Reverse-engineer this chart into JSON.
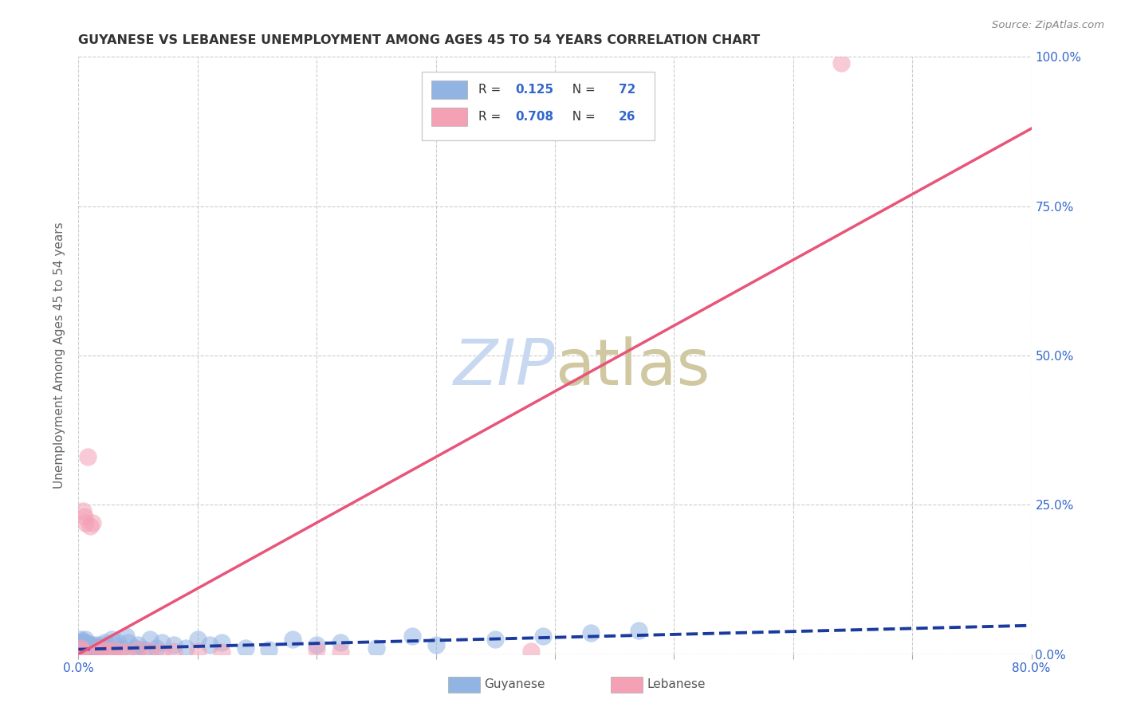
{
  "title": "GUYANESE VS LEBANESE UNEMPLOYMENT AMONG AGES 45 TO 54 YEARS CORRELATION CHART",
  "source": "Source: ZipAtlas.com",
  "ylabel": "Unemployment Among Ages 45 to 54 years",
  "xlim": [
    0.0,
    0.8
  ],
  "ylim": [
    0.0,
    1.0
  ],
  "yticks_right": [
    0.0,
    0.25,
    0.5,
    0.75,
    1.0
  ],
  "ytick_labels_right": [
    "0.0%",
    "25.0%",
    "50.0%",
    "75.0%",
    "100.0%"
  ],
  "xtick_positions": [
    0.0,
    0.1,
    0.2,
    0.3,
    0.4,
    0.5,
    0.6,
    0.7,
    0.8
  ],
  "xtick_labels": [
    "0.0%",
    "",
    "",
    "",
    "",
    "",
    "",
    "",
    "80.0%"
  ],
  "guyanese_color": "#92b4e3",
  "lebanese_color": "#f4a0b5",
  "guyanese_line_color": "#1a3a9e",
  "lebanese_line_color": "#e8547a",
  "title_color": "#333333",
  "source_color": "#888888",
  "label_color": "#3366cc",
  "watermark_color": "#c8d8f0",
  "grid_color": "#cccccc",
  "R_guyanese": 0.125,
  "N_guyanese": 72,
  "R_lebanese": 0.708,
  "N_lebanese": 26,
  "guyanese_scatter_x": [
    0.0,
    0.001,
    0.001,
    0.002,
    0.002,
    0.002,
    0.003,
    0.003,
    0.003,
    0.004,
    0.004,
    0.004,
    0.005,
    0.005,
    0.005,
    0.006,
    0.006,
    0.006,
    0.007,
    0.007,
    0.007,
    0.008,
    0.008,
    0.009,
    0.009,
    0.01,
    0.01,
    0.011,
    0.011,
    0.012,
    0.012,
    0.013,
    0.013,
    0.014,
    0.015,
    0.015,
    0.016,
    0.017,
    0.018,
    0.019,
    0.02,
    0.022,
    0.025,
    0.028,
    0.03,
    0.033,
    0.036,
    0.04,
    0.042,
    0.048,
    0.05,
    0.055,
    0.06,
    0.065,
    0.07,
    0.08,
    0.09,
    0.1,
    0.11,
    0.12,
    0.14,
    0.16,
    0.18,
    0.2,
    0.22,
    0.25,
    0.28,
    0.3,
    0.35,
    0.39,
    0.43,
    0.47
  ],
  "guyanese_scatter_y": [
    0.005,
    0.012,
    0.02,
    0.008,
    0.015,
    0.025,
    0.005,
    0.01,
    0.018,
    0.008,
    0.015,
    0.022,
    0.005,
    0.012,
    0.02,
    0.008,
    0.015,
    0.025,
    0.005,
    0.01,
    0.018,
    0.008,
    0.015,
    0.005,
    0.012,
    0.008,
    0.015,
    0.005,
    0.012,
    0.008,
    0.015,
    0.005,
    0.012,
    0.008,
    0.005,
    0.015,
    0.008,
    0.012,
    0.005,
    0.01,
    0.015,
    0.02,
    0.01,
    0.025,
    0.015,
    0.02,
    0.01,
    0.03,
    0.02,
    0.01,
    0.015,
    0.008,
    0.025,
    0.01,
    0.02,
    0.015,
    0.01,
    0.025,
    0.015,
    0.02,
    0.01,
    0.008,
    0.025,
    0.015,
    0.02,
    0.01,
    0.03,
    0.015,
    0.025,
    0.03,
    0.035,
    0.04
  ],
  "lebanese_scatter_x": [
    0.001,
    0.002,
    0.003,
    0.004,
    0.005,
    0.006,
    0.008,
    0.01,
    0.012,
    0.015,
    0.018,
    0.02,
    0.025,
    0.03,
    0.035,
    0.04,
    0.05,
    0.06,
    0.07,
    0.08,
    0.1,
    0.12,
    0.2,
    0.22,
    0.38,
    0.64
  ],
  "lebanese_scatter_y": [
    0.005,
    0.01,
    0.008,
    0.24,
    0.23,
    0.22,
    0.33,
    0.215,
    0.22,
    0.005,
    0.008,
    0.01,
    0.005,
    0.007,
    0.003,
    0.005,
    0.008,
    0.006,
    0.003,
    0.005,
    0.005,
    0.003,
    0.008,
    0.003,
    0.005,
    0.99
  ],
  "guyanese_trend_x": [
    0.0,
    0.8
  ],
  "guyanese_trend_y": [
    0.008,
    0.048
  ],
  "lebanese_trend_x": [
    0.0,
    0.8
  ],
  "lebanese_trend_y": [
    0.0,
    0.88
  ],
  "legend_guyanese_label": "Guyanese",
  "legend_lebanese_label": "Lebanese",
  "background_color": "#ffffff"
}
